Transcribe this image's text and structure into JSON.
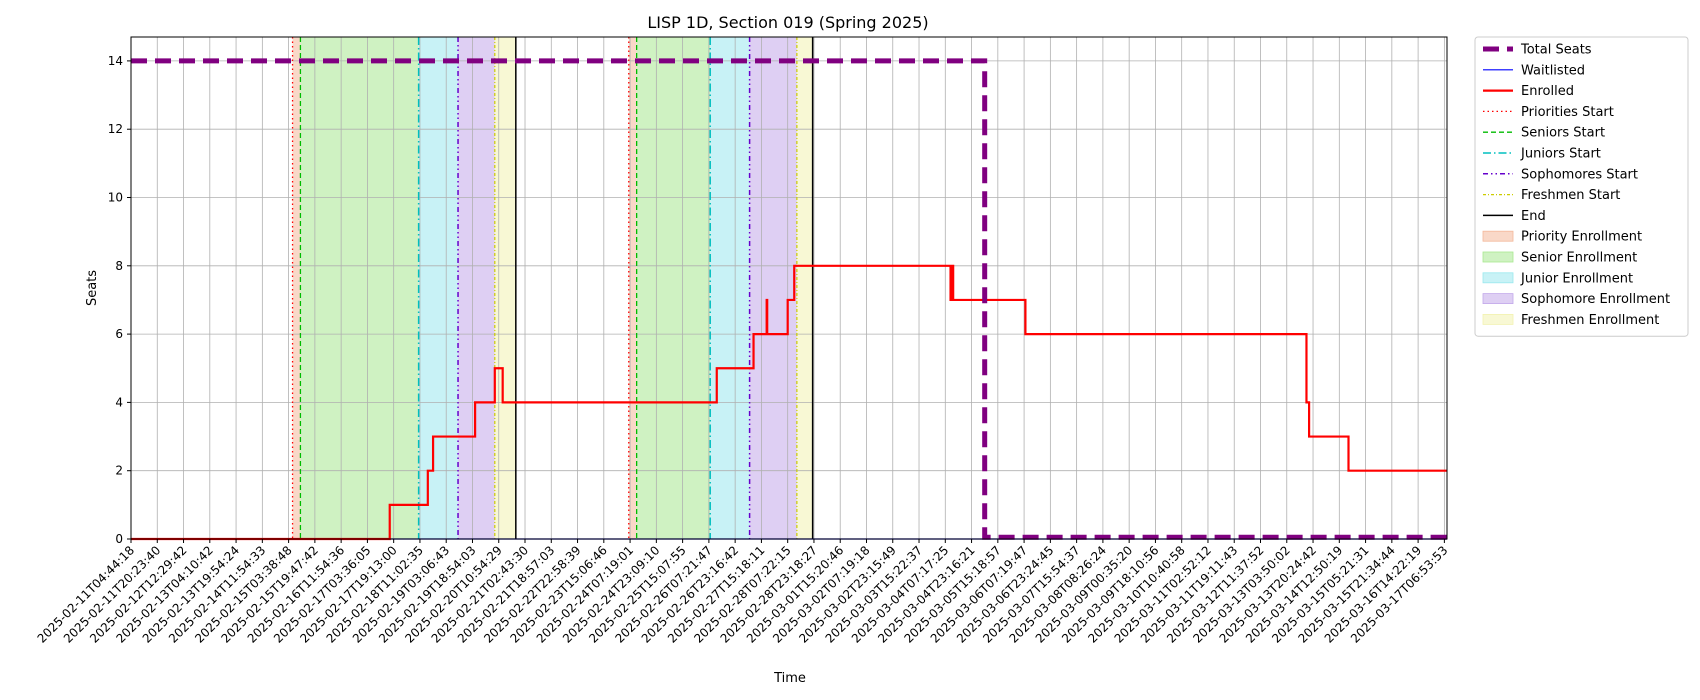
{
  "chart_data": {
    "type": "line",
    "title": "LISP 1D, Section 019 (Spring 2025)",
    "xlabel": "Time",
    "ylabel": "Seats",
    "ylim": [
      0,
      14.7
    ],
    "yticks": [
      0,
      2,
      4,
      6,
      8,
      10,
      12,
      14
    ],
    "grid": true,
    "legend_position": "outside-right",
    "x_ticks": [
      "2025-02-11T04:44:18",
      "2025-02-11T20:23:40",
      "2025-02-12T12:29:42",
      "2025-02-13T04:10:42",
      "2025-02-13T19:54:24",
      "2025-02-14T11:54:33",
      "2025-02-15T03:38:48",
      "2025-02-15T19:47:42",
      "2025-02-16T11:54:36",
      "2025-02-17T03:36:05",
      "2025-02-17T19:13:00",
      "2025-02-18T11:02:35",
      "2025-02-19T03:06:43",
      "2025-02-19T18:54:03",
      "2025-02-20T10:54:29",
      "2025-02-21T02:43:30",
      "2025-02-21T18:57:03",
      "2025-02-22T22:58:39",
      "2025-02-23T15:06:46",
      "2025-02-24T07:19:01",
      "2025-02-24T23:09:10",
      "2025-02-25T15:07:55",
      "2025-02-26T07:21:47",
      "2025-02-26T23:16:42",
      "2025-02-27T15:18:11",
      "2025-02-28T07:22:15",
      "2025-02-28T23:18:27",
      "2025-03-01T15:20:46",
      "2025-03-02T07:19:18",
      "2025-03-02T23:15:49",
      "2025-03-03T15:22:37",
      "2025-03-04T07:17:25",
      "2025-03-04T23:16:21",
      "2025-03-05T15:18:57",
      "2025-03-06T07:19:47",
      "2025-03-06T23:24:45",
      "2025-03-07T15:54:37",
      "2025-03-08T08:26:24",
      "2025-03-09T00:35:20",
      "2025-03-09T18:10:56",
      "2025-03-10T10:40:58",
      "2025-03-11T02:52:12",
      "2025-03-11T19:11:43",
      "2025-03-12T11:37:52",
      "2025-03-13T03:50:02",
      "2025-03-13T20:24:42",
      "2025-03-14T12:50:19",
      "2025-03-15T05:21:31",
      "2025-03-15T21:34:44",
      "2025-03-16T14:22:19",
      "2025-03-17T06:53:53"
    ],
    "x_range": [
      0,
      50.1
    ],
    "series": [
      {
        "name": "Total Seats",
        "color": "#800080",
        "points": [
          [
            0,
            14
          ],
          [
            32.5,
            14
          ],
          [
            32.5,
            0.05
          ],
          [
            50.1,
            0.05
          ]
        ]
      },
      {
        "name": "Waitlisted",
        "color": "#0000ff",
        "points": [
          [
            0,
            0
          ],
          [
            50.1,
            0
          ]
        ]
      },
      {
        "name": "Enrolled",
        "color": "#ff0000",
        "points": [
          [
            0,
            0
          ],
          [
            9.85,
            0
          ],
          [
            9.85,
            1
          ],
          [
            11.3,
            1
          ],
          [
            11.3,
            2
          ],
          [
            11.5,
            2
          ],
          [
            11.5,
            3
          ],
          [
            13.1,
            3
          ],
          [
            13.1,
            4
          ],
          [
            13.85,
            4
          ],
          [
            13.85,
            5
          ],
          [
            14.15,
            5
          ],
          [
            14.15,
            4
          ],
          [
            22.3,
            4
          ],
          [
            22.3,
            5
          ],
          [
            23.7,
            5
          ],
          [
            23.7,
            6
          ],
          [
            24.2,
            6
          ],
          [
            24.2,
            7
          ],
          [
            24.22,
            7
          ],
          [
            24.22,
            6
          ],
          [
            25.0,
            6
          ],
          [
            25.0,
            7
          ],
          [
            25.25,
            7
          ],
          [
            25.25,
            8
          ],
          [
            31.2,
            8
          ],
          [
            31.2,
            7
          ],
          [
            31.25,
            7
          ],
          [
            31.25,
            8
          ],
          [
            31.3,
            8
          ],
          [
            31.3,
            7
          ],
          [
            34.05,
            7
          ],
          [
            34.05,
            6
          ],
          [
            44.75,
            6
          ],
          [
            44.75,
            4
          ],
          [
            44.85,
            4
          ],
          [
            44.85,
            3
          ],
          [
            46.35,
            3
          ],
          [
            46.35,
            2
          ],
          [
            50.1,
            2
          ]
        ]
      }
    ],
    "markers": [
      {
        "name": "Priorities Start",
        "color": "#ff0000",
        "x": [
          6.15,
          18.95
        ]
      },
      {
        "name": "Seniors Start",
        "color": "#00bb00",
        "x": [
          6.45,
          19.25
        ]
      },
      {
        "name": "Juniors Start",
        "color": "#00bfbf",
        "x": [
          10.95,
          22.05
        ]
      },
      {
        "name": "Sophomores Start",
        "color": "#6600cc",
        "x": [
          12.45,
          23.55
        ]
      },
      {
        "name": "Freshmen Start",
        "color": "#cccc00",
        "x": [
          13.85,
          25.35
        ]
      },
      {
        "name": "End",
        "color": "#000000",
        "x": [
          14.65,
          25.95
        ]
      }
    ],
    "regions": [
      {
        "name": "Priority Enrollment",
        "color": "#f4b89a",
        "spans": [
          [
            6.15,
            6.45
          ],
          [
            18.95,
            19.25
          ]
        ]
      },
      {
        "name": "Senior Enrollment",
        "color": "#a8e890",
        "spans": [
          [
            6.45,
            10.95
          ],
          [
            19.25,
            22.05
          ]
        ]
      },
      {
        "name": "Junior Enrollment",
        "color": "#9ae8ee",
        "spans": [
          [
            10.95,
            12.45
          ],
          [
            22.05,
            23.55
          ]
        ]
      },
      {
        "name": "Sophomore Enrollment",
        "color": "#c2a8ea",
        "spans": [
          [
            12.45,
            13.85
          ],
          [
            23.55,
            25.35
          ]
        ]
      },
      {
        "name": "Freshmen Enrollment",
        "color": "#f2f2b0",
        "spans": [
          [
            13.85,
            14.65
          ],
          [
            25.35,
            25.95
          ]
        ]
      }
    ],
    "legend": [
      "Total Seats",
      "Waitlisted",
      "Enrolled",
      "Priorities Start",
      "Seniors Start",
      "Juniors Start",
      "Sophomores Start",
      "Freshmen Start",
      "End",
      "Priority Enrollment",
      "Senior Enrollment",
      "Junior Enrollment",
      "Sophomore Enrollment",
      "Freshmen Enrollment"
    ]
  }
}
